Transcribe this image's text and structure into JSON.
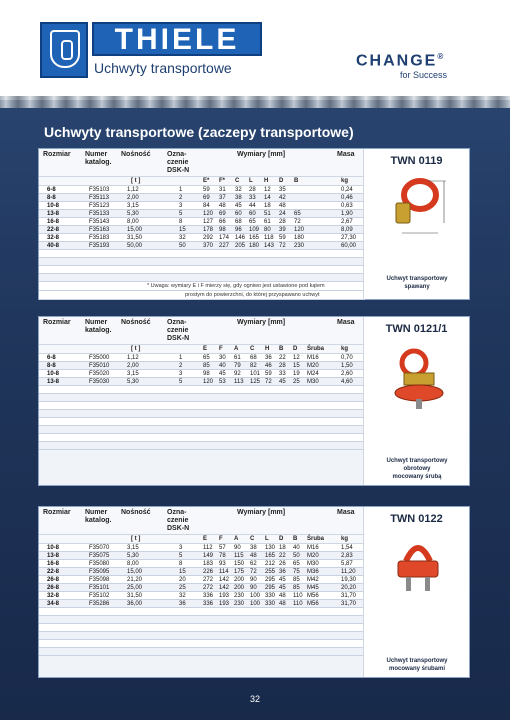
{
  "header": {
    "brand": "THIELE",
    "subtitle": "Uchwyty transportowe",
    "change_logo": "CHANGE",
    "change_reg": "®",
    "change_tagline": "for Success"
  },
  "page_title": "Uchwyty transportowe  (zaczepy transportowe)",
  "page_number": "32",
  "col_headers": {
    "rozmiar": "Rozmiar",
    "numer": "Numer",
    "katalog": "katalog.",
    "nosnosc": "Nośność",
    "ozna": "Ozna-",
    "czenie": "czenie",
    "dsk": "DSK-N",
    "wymiary": "Wymiary [mm]",
    "masa": "Masa"
  },
  "sections": [
    {
      "model": "TWN 0119",
      "caption": [
        "Uchwyt transportowy",
        "spawany"
      ],
      "units": {
        "t": "[ t ]",
        "kg": "kg"
      },
      "dims": [
        "E*",
        "F*",
        "C",
        "L",
        "H",
        "D",
        "B"
      ],
      "rows": [
        [
          "6-8",
          "F35103",
          "1,12",
          "1",
          "59",
          "31",
          "32",
          "28",
          "12",
          "35",
          "",
          "0,24"
        ],
        [
          "8-8",
          "F35113",
          "2,00",
          "2",
          "69",
          "37",
          "38",
          "33",
          "14",
          "42",
          "",
          "0,46"
        ],
        [
          "10-8",
          "F35123",
          "3,15",
          "3",
          "84",
          "48",
          "45",
          "44",
          "18",
          "48",
          "",
          "0,63"
        ],
        [
          "13-8",
          "F35133",
          "5,30",
          "5",
          "120",
          "69",
          "60",
          "60",
          "51",
          "24",
          "65",
          "1,90"
        ],
        [
          "16-8",
          "F35143",
          "8,00",
          "8",
          "127",
          "66",
          "68",
          "65",
          "61",
          "28",
          "72",
          "2,67"
        ],
        [
          "22-8",
          "F35163",
          "15,00",
          "15",
          "178",
          "98",
          "96",
          "109",
          "80",
          "39",
          "120",
          "8,09"
        ],
        [
          "32-8",
          "F35183",
          "31,50",
          "32",
          "292",
          "174",
          "146",
          "165",
          "118",
          "59",
          "180",
          "27,30"
        ],
        [
          "40-8",
          "F35193",
          "50,00",
          "50",
          "370",
          "227",
          "205",
          "180",
          "143",
          "72",
          "230",
          "60,00"
        ]
      ],
      "note": [
        "* Uwaga:  wymiary E i F mierzy się, gdy ogniwo jest ustawione pod kątem",
        "prostym do powierzchni, do której przyspawano uchwyt"
      ]
    },
    {
      "model": "TWN 0121/1",
      "caption": [
        "Uchwyt transportowy",
        "obrotowy",
        "mocowany śrubą"
      ],
      "units": {
        "t": "[ t ]",
        "kg": "kg"
      },
      "dims": [
        "E",
        "F",
        "A",
        "C",
        "H",
        "B",
        "D",
        "Śruba"
      ],
      "rows": [
        [
          "6-8",
          "F35000",
          "1,12",
          "1",
          "65",
          "30",
          "61",
          "68",
          "36",
          "22",
          "12",
          "M16",
          "0,70"
        ],
        [
          "8-8",
          "F35010",
          "2,00",
          "2",
          "85",
          "40",
          "79",
          "82",
          "46",
          "28",
          "15",
          "M20",
          "1,50"
        ],
        [
          "10-8",
          "F35020",
          "3,15",
          "3",
          "98",
          "45",
          "92",
          "101",
          "59",
          "33",
          "19",
          "M24",
          "2,60"
        ],
        [
          "13-8",
          "F35030",
          "5,30",
          "5",
          "120",
          "53",
          "113",
          "125",
          "72",
          "45",
          "25",
          "M30",
          "4,60"
        ]
      ]
    },
    {
      "model": "TWN 0122",
      "caption": [
        "Uchwyt transportowy",
        "mocowany śrubami"
      ],
      "units": {
        "t": "[ t ]",
        "kg": "kg"
      },
      "dims": [
        "E",
        "F",
        "A",
        "C",
        "L",
        "D",
        "B",
        "Śruba"
      ],
      "rows": [
        [
          "10-8",
          "F35070",
          "3,15",
          "3",
          "112",
          "57",
          "90",
          "38",
          "130",
          "18",
          "40",
          "M16",
          "1,54"
        ],
        [
          "13-8",
          "F35075",
          "5,30",
          "5",
          "149",
          "78",
          "115",
          "48",
          "165",
          "22",
          "50",
          "M20",
          "2,83"
        ],
        [
          "16-8",
          "F35080",
          "8,00",
          "8",
          "183",
          "93",
          "150",
          "62",
          "212",
          "26",
          "65",
          "M30",
          "5,87"
        ],
        [
          "22-8",
          "F35095",
          "15,00",
          "15",
          "226",
          "114",
          "175",
          "72",
          "255",
          "36",
          "75",
          "M36",
          "11,20"
        ],
        [
          "26-8",
          "F35098",
          "21,20",
          "20",
          "272",
          "142",
          "200",
          "90",
          "295",
          "45",
          "85",
          "M42",
          "19,30"
        ],
        [
          "26-8",
          "F35101",
          "25,00",
          "25",
          "272",
          "142",
          "200",
          "90",
          "295",
          "45",
          "85",
          "M45",
          "20,20"
        ],
        [
          "32-8",
          "F35102",
          "31,50",
          "32",
          "336",
          "193",
          "230",
          "100",
          "330",
          "48",
          "110",
          "M56",
          "31,70"
        ],
        [
          "34-8",
          "F35286",
          "36,00",
          "36",
          "336",
          "193",
          "230",
          "100",
          "330",
          "48",
          "110",
          "M56",
          "31,70"
        ]
      ]
    }
  ]
}
